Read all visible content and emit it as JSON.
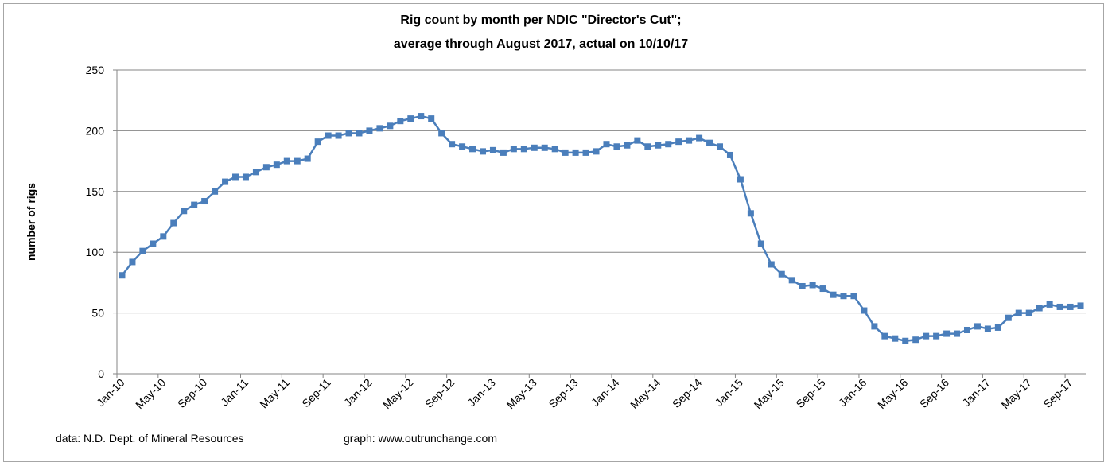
{
  "chart_data": {
    "type": "line",
    "title": [
      "Rig count by month per NDIC \"Director's Cut\";",
      "average through August 2017, actual on  10/10/17"
    ],
    "xlabel": "",
    "ylabel": "number of rigs",
    "ylim": [
      0,
      250
    ],
    "yticks": [
      0,
      50,
      100,
      150,
      200,
      250
    ],
    "grid": true,
    "legend": "none",
    "start_month": "Jan-10",
    "end_month": "Oct-17",
    "xtick_labels": [
      "Jan-10",
      "May-10",
      "Sep-10",
      "Jan-11",
      "May-11",
      "Sep-11",
      "Jan-12",
      "May-12",
      "Sep-12",
      "Jan-13",
      "May-13",
      "Sep-13",
      "Jan-14",
      "May-14",
      "Sep-14",
      "Jan-15",
      "May-15",
      "Sep-15",
      "Jan-16",
      "May-16",
      "Sep-16",
      "Jan-17",
      "May-17",
      "Sep-17"
    ],
    "series": [
      {
        "name": "rig count",
        "color": "#4a7ebb",
        "values": [
          81,
          92,
          101,
          107,
          113,
          124,
          134,
          139,
          142,
          150,
          158,
          162,
          162,
          166,
          170,
          172,
          175,
          175,
          177,
          191,
          196,
          196,
          198,
          198,
          200,
          202,
          204,
          208,
          210,
          212,
          210,
          198,
          189,
          187,
          185,
          183,
          184,
          182,
          185,
          185,
          186,
          186,
          185,
          182,
          182,
          182,
          183,
          189,
          187,
          188,
          192,
          187,
          188,
          189,
          191,
          192,
          194,
          190,
          187,
          180,
          160,
          132,
          107,
          90,
          82,
          77,
          72,
          73,
          70,
          65,
          64,
          64,
          52,
          39,
          31,
          29,
          27,
          28,
          31,
          31,
          33,
          33,
          36,
          39,
          37,
          38,
          46,
          50,
          50,
          54,
          57,
          55,
          55,
          56
        ]
      }
    ]
  },
  "footer": {
    "source": "data: N.D. Dept. of Mineral Resources",
    "credit": "graph:  www.outrunchange.com"
  }
}
